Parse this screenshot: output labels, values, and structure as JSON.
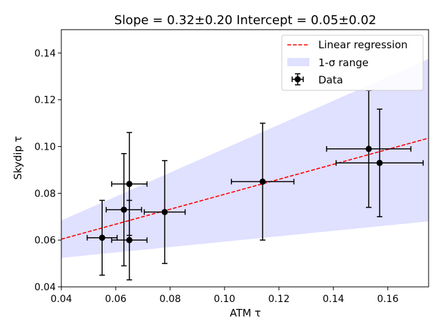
{
  "chart_data": {
    "type": "scatter",
    "title": "Slope = 0.32±0.20 Intercept = 0.05±0.02",
    "xlabel": "ATM τ",
    "ylabel": "Skydip τ",
    "xlim": [
      0.04,
      0.175
    ],
    "ylim": [
      0.04,
      0.15
    ],
    "xticks": [
      0.04,
      0.06,
      0.08,
      0.1,
      0.12,
      0.14,
      0.16
    ],
    "xtick_labels": [
      "0.04",
      "0.06",
      "0.08",
      "0.10",
      "0.12",
      "0.14",
      "0.16"
    ],
    "yticks": [
      0.04,
      0.06,
      0.08,
      0.1,
      0.12,
      0.14
    ],
    "ytick_labels": [
      "0.04",
      "0.06",
      "0.08",
      "0.10",
      "0.12",
      "0.14"
    ],
    "grid": false,
    "legend_position": "top-right",
    "legend": {
      "regression": "Linear regression",
      "band": "1-σ range",
      "data": "Data"
    },
    "colors": {
      "regression": "#ff0000",
      "band": "#e0e0ff",
      "data": "#000000"
    },
    "regression": {
      "slope": 0.32,
      "intercept": 0.0476
    },
    "band": {
      "x": [
        0.04,
        0.175
      ],
      "lower": [
        0.0524,
        0.068
      ],
      "upper": [
        0.0684,
        0.1375
      ]
    },
    "points": [
      {
        "x": 0.055,
        "y": 0.061,
        "xerr": 0.0055,
        "yerr": 0.016
      },
      {
        "x": 0.063,
        "y": 0.073,
        "xerr": 0.0065,
        "yerr": 0.024
      },
      {
        "x": 0.065,
        "y": 0.084,
        "xerr": 0.0065,
        "yerr": 0.022
      },
      {
        "x": 0.065,
        "y": 0.06,
        "xerr": 0.0065,
        "yerr": 0.017
      },
      {
        "x": 0.078,
        "y": 0.072,
        "xerr": 0.0075,
        "yerr": 0.022
      },
      {
        "x": 0.114,
        "y": 0.085,
        "xerr": 0.0115,
        "yerr": 0.025
      },
      {
        "x": 0.153,
        "y": 0.099,
        "xerr": 0.0155,
        "yerr": 0.025
      },
      {
        "x": 0.157,
        "y": 0.093,
        "xerr": 0.016,
        "yerr": 0.023
      }
    ]
  }
}
